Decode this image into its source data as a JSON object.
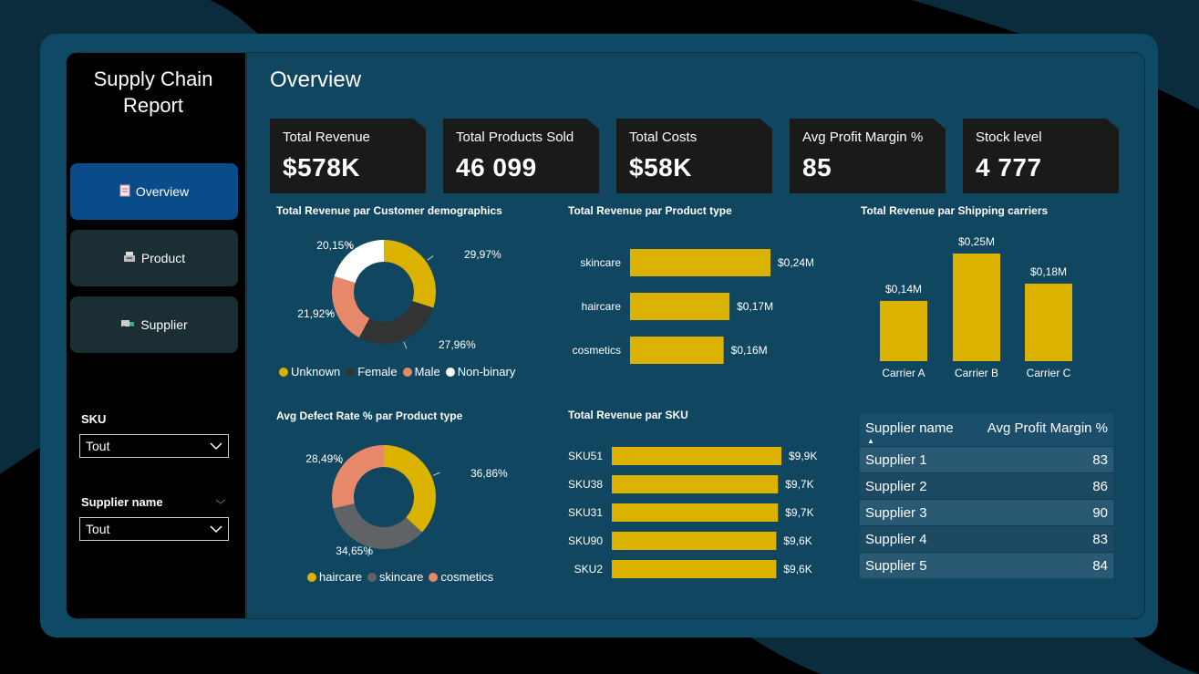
{
  "app": {
    "title_line1": "Supply Chain",
    "title_line2": "Report"
  },
  "nav": [
    {
      "label": "Overview",
      "icon": "document-icon",
      "active": true
    },
    {
      "label": "Product",
      "icon": "cash-register-icon",
      "active": false
    },
    {
      "label": "Supplier",
      "icon": "truck-icon",
      "active": false
    }
  ],
  "filters": {
    "sku": {
      "label": "SKU",
      "value": "Tout"
    },
    "supplier": {
      "label": "Supplier name",
      "value": "Tout"
    }
  },
  "page": {
    "title": "Overview"
  },
  "kpis": [
    {
      "label": "Total Revenue",
      "value": "$578K"
    },
    {
      "label": "Total Products Sold",
      "value": "46 099"
    },
    {
      "label": "Total Costs",
      "value": "$58K"
    },
    {
      "label": "Avg Profit Margin %",
      "value": "85"
    },
    {
      "label": "Stock level",
      "value": "4 777"
    }
  ],
  "colors": {
    "yellow": "#dbb200",
    "dark": "#333333",
    "salmon": "#e8886a",
    "white": "#ffffff",
    "grey": "#5f6366"
  },
  "chart_data": [
    {
      "id": "demographics",
      "type": "pie",
      "title": "Total Revenue par Customer demographics",
      "categories": [
        "Unknown",
        "Female",
        "Male",
        "Non-binary"
      ],
      "values": [
        29.97,
        27.96,
        21.92,
        20.15
      ],
      "labels": [
        "29,97%",
        "27,96%",
        "21,92%",
        "20,15%"
      ],
      "colors": [
        "#dbb200",
        "#333333",
        "#e8886a",
        "#ffffff"
      ]
    },
    {
      "id": "product_type",
      "type": "bar",
      "title": "Total Revenue par Product type",
      "categories": [
        "skincare",
        "haircare",
        "cosmetics"
      ],
      "values": [
        0.24,
        0.17,
        0.16
      ],
      "labels": [
        "$0,24M",
        "$0,17M",
        "$0,16M"
      ]
    },
    {
      "id": "carriers",
      "type": "bar",
      "title": "Total Revenue par Shipping carriers",
      "categories": [
        "Carrier A",
        "Carrier B",
        "Carrier C"
      ],
      "values": [
        0.14,
        0.25,
        0.18
      ],
      "labels": [
        "$0,14M",
        "$0,25M",
        "$0,18M"
      ]
    },
    {
      "id": "defect",
      "type": "pie",
      "title": "Avg Defect Rate % par Product type",
      "categories": [
        "haircare",
        "skincare",
        "cosmetics"
      ],
      "values": [
        36.86,
        34.65,
        28.49
      ],
      "labels": [
        "36,86%",
        "34,65%",
        "28,49%"
      ],
      "colors": [
        "#dbb200",
        "#5f6366",
        "#e8886a"
      ]
    },
    {
      "id": "sku",
      "type": "bar",
      "title": "Total Revenue par SKU",
      "categories": [
        "SKU51",
        "SKU38",
        "SKU31",
        "SKU90",
        "SKU2"
      ],
      "values": [
        9.9,
        9.7,
        9.7,
        9.6,
        9.6
      ],
      "labels": [
        "$9,9K",
        "$9,7K",
        "$9,7K",
        "$9,6K",
        "$9,6K"
      ]
    }
  ],
  "supplier_table": {
    "headers": [
      "Supplier name",
      "Avg Profit Margin %"
    ],
    "rows": [
      [
        "Supplier 1",
        "83"
      ],
      [
        "Supplier 2",
        "86"
      ],
      [
        "Supplier 3",
        "90"
      ],
      [
        "Supplier 4",
        "83"
      ],
      [
        "Supplier 5",
        "84"
      ]
    ]
  }
}
